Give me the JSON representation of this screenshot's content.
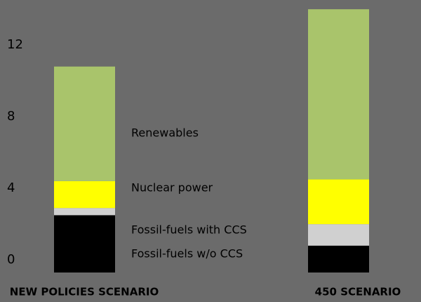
{
  "chart_data": {
    "type": "stacked_bar",
    "categories": [
      "NEW POLICIES SCENARIO",
      "450 SCENARIO"
    ],
    "series": [
      {
        "name": "Fossil-fuels w/o CCS",
        "color": "#000000",
        "values": [
          3.2,
          1.5
        ]
      },
      {
        "name": "Fossil-fuels with CCS",
        "color": "#d0d0d0",
        "values": [
          0.4,
          1.2
        ]
      },
      {
        "name": "Nuclear power",
        "color": "#ffff00",
        "values": [
          1.5,
          2.5
        ]
      },
      {
        "name": "Renewables",
        "color": "#a9c46b",
        "values": [
          6.4,
          9.5
        ]
      }
    ],
    "ylim": [
      0,
      15
    ],
    "yticks": [
      0,
      4,
      8,
      12
    ],
    "grid": false
  }
}
